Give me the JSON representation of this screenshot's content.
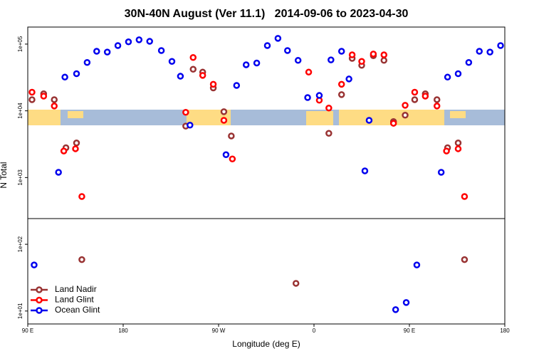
{
  "chart_data": {
    "type": "scatter",
    "title": "30N-40N August (Ver 11.1)   2014-09-06 to 2023-04-30",
    "x_label": "Longitude (deg E)",
    "y_label": "N Total",
    "xlim": [
      90,
      540
    ],
    "ylim": [
      6.4,
      180000
    ],
    "log_y": true,
    "legend": "lower left",
    "xticks": [
      {
        "value": 90,
        "label": "90 E"
      },
      180,
      {
        "value": 270,
        "label": "90 W"
      },
      {
        "value": 360,
        "label": "0"
      },
      {
        "value": 450,
        "label": "90 E"
      },
      {
        "value": 540,
        "label": "180"
      }
    ],
    "yticks": [
      {
        "value": 10,
        "label": "1e+01"
      },
      {
        "value": 100,
        "label": "1e+02"
      },
      {
        "value": 1000,
        "label": "1e+03"
      },
      {
        "value": 10000,
        "label": "1e+04"
      },
      {
        "value": 100000,
        "label": "1e+05"
      }
    ],
    "series": [
      {
        "name": "Land Nadir",
        "color": "#993333",
        "x": [
          94,
          105,
          115,
          126,
          136,
          141,
          239,
          246,
          255,
          265,
          275,
          282,
          343,
          374,
          386,
          396,
          405,
          416,
          426,
          435,
          446,
          455,
          465,
          476,
          486,
          496,
          502
        ],
        "values": [
          14700,
          18000,
          14700,
          2800,
          3300,
          59,
          5900,
          42000,
          38000,
          22000,
          9700,
          4200,
          26,
          4600,
          17500,
          61000,
          48000,
          67000,
          57000,
          6900,
          8600,
          14700,
          18000,
          14700,
          2800,
          3300,
          59
        ]
      },
      {
        "name": "Land Glint",
        "color": "#ff0000",
        "x": [
          94,
          105,
          115,
          124,
          135,
          141,
          239,
          246,
          255,
          265,
          275,
          283,
          355,
          365,
          374,
          386,
          396,
          405,
          416,
          426,
          435,
          446,
          455,
          465,
          476,
          485,
          496,
          502
        ],
        "values": [
          19000,
          16600,
          11800,
          2500,
          2700,
          520,
          9500,
          63000,
          34000,
          25000,
          7200,
          1900,
          38000,
          14400,
          11000,
          25000,
          69000,
          55000,
          71000,
          69000,
          6500,
          12100,
          19000,
          16600,
          11800,
          2500,
          2700,
          520
        ]
      },
      {
        "name": "Ocean Glint",
        "color": "#0000ee",
        "x": [
          96,
          119,
          125,
          136,
          146,
          155,
          165,
          175,
          185,
          195,
          205,
          216,
          226,
          234,
          243,
          277,
          287,
          296,
          306,
          316,
          326,
          335,
          345,
          354,
          365,
          376,
          386,
          393,
          408,
          412,
          437,
          447,
          457,
          480,
          486,
          496,
          506,
          516,
          526,
          536
        ],
        "values": [
          49,
          1200,
          32000,
          36000,
          53000,
          78000,
          76000,
          95000,
          108000,
          116000,
          110000,
          80000,
          55000,
          33000,
          6100,
          2200,
          24000,
          49000,
          52000,
          95000,
          122000,
          80000,
          57000,
          15800,
          17000,
          58000,
          78000,
          30000,
          1260,
          7200,
          10.5,
          13.4,
          49,
          1200,
          32000,
          36000,
          53000,
          78000,
          76000,
          95000
        ]
      }
    ]
  }
}
